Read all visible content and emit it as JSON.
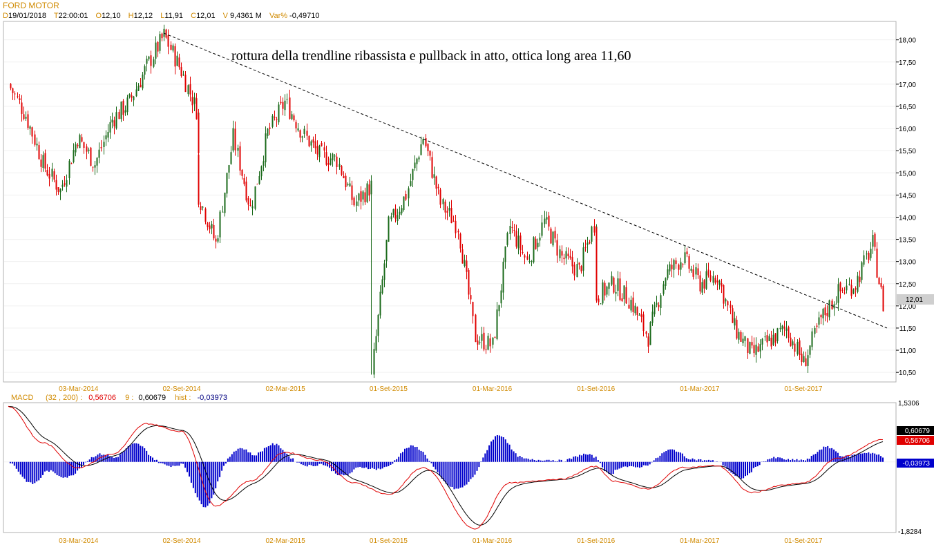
{
  "header": {
    "symbol": "FORD MOTOR",
    "date_key": "D",
    "date": "19/01/2018",
    "time_key": "T",
    "time": "22:00:01",
    "open_key": "O",
    "open": "12,10",
    "high_key": "H",
    "high": "12,12",
    "low_key": "L",
    "low": "11,91",
    "close_key": "C",
    "close": "12,01",
    "volume_key": "V",
    "volume": "9,4361 M",
    "var_key": "Var%",
    "var": "-0,49710"
  },
  "price_panel": {
    "annotation": "rottura della trendline ribassista e pullback in atto, ottica long area 11,60",
    "last_price_label": "12,01",
    "y_ticks": [
      "18,00",
      "17,50",
      "17,00",
      "16,50",
      "16,00",
      "15,50",
      "15,00",
      "14,50",
      "14,00",
      "13,50",
      "13,00",
      "12,50",
      "12,00",
      "11,50",
      "11,00",
      "10,50"
    ]
  },
  "x_axis_labels": [
    "03-Mar-2014",
    "02-Set-2014",
    "02-Mar-2015",
    "01-Set-2015",
    "01-Mar-2016",
    "01-Set-2016",
    "01-Mar-2017",
    "01-Set-2017"
  ],
  "macd_panel": {
    "name": "MACD",
    "params": "(32 , 200) :",
    "macd_value": "0,56706",
    "signal_key": "9 :",
    "signal_value": "0,60679",
    "hist_key": "hist :",
    "hist_value": "-0,03973",
    "y_top_label": "1,5306",
    "y_bottom_label": "-1,8284",
    "badges": {
      "signal": "0,60679",
      "macd": "0,56706",
      "hist": "-0,03973"
    }
  },
  "colors": {
    "header_orange": "#d08a00",
    "candle_up": "#1a6a1a",
    "candle_down": "#e00000",
    "trendline": "#000000",
    "macd_line": "#e00000",
    "signal_line": "#000000",
    "histogram": "#0000cc",
    "grid": "#f0f0f0"
  },
  "chart_data": [
    {
      "type": "candlestick",
      "title": "FORD MOTOR",
      "y_range": [
        10.3,
        18.4
      ],
      "x_range": [
        "2013-11",
        "2018-01-19"
      ],
      "key_points": [
        {
          "x": "2013-11",
          "y": 17.0
        },
        {
          "x": "2013-12",
          "y": 16.3
        },
        {
          "x": "2014-01",
          "y": 15.2
        },
        {
          "x": "2014-02",
          "y": 14.6
        },
        {
          "x": "2014-03",
          "y": 15.8
        },
        {
          "x": "2014-04",
          "y": 15.2
        },
        {
          "x": "2014-05",
          "y": 16.2
        },
        {
          "x": "2014-06",
          "y": 16.6
        },
        {
          "x": "2014-07",
          "y": 17.4
        },
        {
          "x": "2014-08",
          "y": 18.1
        },
        {
          "x": "2014-09",
          "y": 17.3
        },
        {
          "x": "2014-10",
          "y": 16.3
        },
        {
          "x": "2014-10",
          "y": 14.5
        },
        {
          "x": "2014-11",
          "y": 13.4
        },
        {
          "x": "2014-12",
          "y": 15.8
        },
        {
          "x": "2015-01",
          "y": 14.2
        },
        {
          "x": "2015-02",
          "y": 15.9
        },
        {
          "x": "2015-03",
          "y": 16.6
        },
        {
          "x": "2015-04",
          "y": 15.9
        },
        {
          "x": "2015-05",
          "y": 15.4
        },
        {
          "x": "2015-06",
          "y": 15.3
        },
        {
          "x": "2015-07",
          "y": 14.3
        },
        {
          "x": "2015-08",
          "y": 14.7
        },
        {
          "x": "2015-08",
          "y": 10.45
        },
        {
          "x": "2015-09",
          "y": 13.8
        },
        {
          "x": "2015-10",
          "y": 14.5
        },
        {
          "x": "2015-11",
          "y": 15.8
        },
        {
          "x": "2015-12",
          "y": 14.3
        },
        {
          "x": "2016-01",
          "y": 13.8
        },
        {
          "x": "2016-02",
          "y": 11.3
        },
        {
          "x": "2016-03",
          "y": 11.1
        },
        {
          "x": "2016-04",
          "y": 13.8
        },
        {
          "x": "2016-05",
          "y": 13.0
        },
        {
          "x": "2016-06",
          "y": 13.9
        },
        {
          "x": "2016-07",
          "y": 13.1
        },
        {
          "x": "2016-08",
          "y": 12.8
        },
        {
          "x": "2016-09",
          "y": 14.0
        },
        {
          "x": "2016-09",
          "y": 12.2
        },
        {
          "x": "2016-10",
          "y": 12.5
        },
        {
          "x": "2016-11",
          "y": 12.1
        },
        {
          "x": "2016-12",
          "y": 11.3
        },
        {
          "x": "2017-01",
          "y": 12.7
        },
        {
          "x": "2017-02",
          "y": 13.1
        },
        {
          "x": "2017-03",
          "y": 12.5
        },
        {
          "x": "2017-04",
          "y": 12.7
        },
        {
          "x": "2017-05",
          "y": 11.5
        },
        {
          "x": "2017-06",
          "y": 10.9
        },
        {
          "x": "2017-07",
          "y": 11.2
        },
        {
          "x": "2017-08",
          "y": 11.5
        },
        {
          "x": "2017-09",
          "y": 10.7
        },
        {
          "x": "2017-10",
          "y": 11.7
        },
        {
          "x": "2017-11",
          "y": 12.3
        },
        {
          "x": "2017-12",
          "y": 12.5
        },
        {
          "x": "2018-01",
          "y": 13.4
        },
        {
          "x": "2018-01-19",
          "y": 12.01
        }
      ],
      "trendline": {
        "style": "dashed",
        "from": {
          "x": "2014-08",
          "y": 18.15
        },
        "to": {
          "x": "2018-01-19",
          "y": 11.5
        }
      },
      "last_value": 12.01
    },
    {
      "type": "line",
      "title": "MACD",
      "y_range": [
        -1.8284,
        1.5306
      ],
      "series": [
        {
          "name": "MACD (32 , 200)",
          "color": "#e00000",
          "last": 0.56706
        },
        {
          "name": "9",
          "color": "#000000",
          "last": 0.60679
        },
        {
          "name": "hist",
          "color": "#0000cc",
          "last": -0.03973
        }
      ],
      "key_points": [
        {
          "x": "2013-11",
          "y": 1.45
        },
        {
          "x": "2014-01",
          "y": 0.5
        },
        {
          "x": "2014-03",
          "y": -0.15
        },
        {
          "x": "2014-05",
          "y": 0.2
        },
        {
          "x": "2014-07",
          "y": 1.0
        },
        {
          "x": "2014-09",
          "y": 0.8
        },
        {
          "x": "2014-11",
          "y": -1.15
        },
        {
          "x": "2015-01",
          "y": -0.5
        },
        {
          "x": "2015-03",
          "y": 0.25
        },
        {
          "x": "2015-05",
          "y": 0.05
        },
        {
          "x": "2015-07",
          "y": -0.55
        },
        {
          "x": "2015-09",
          "y": -0.85
        },
        {
          "x": "2015-11",
          "y": -0.15
        },
        {
          "x": "2016-02",
          "y": -1.75
        },
        {
          "x": "2016-04",
          "y": -0.55
        },
        {
          "x": "2016-07",
          "y": -0.45
        },
        {
          "x": "2016-09",
          "y": -0.12
        },
        {
          "x": "2016-10",
          "y": -0.5
        },
        {
          "x": "2016-12",
          "y": -0.7
        },
        {
          "x": "2017-02",
          "y": -0.15
        },
        {
          "x": "2017-04",
          "y": -0.1
        },
        {
          "x": "2017-06",
          "y": -0.8
        },
        {
          "x": "2017-08",
          "y": -0.6
        },
        {
          "x": "2017-09",
          "y": -0.55
        },
        {
          "x": "2017-11",
          "y": 0.1
        },
        {
          "x": "2018-01-19",
          "y": 0.58
        }
      ]
    }
  ]
}
